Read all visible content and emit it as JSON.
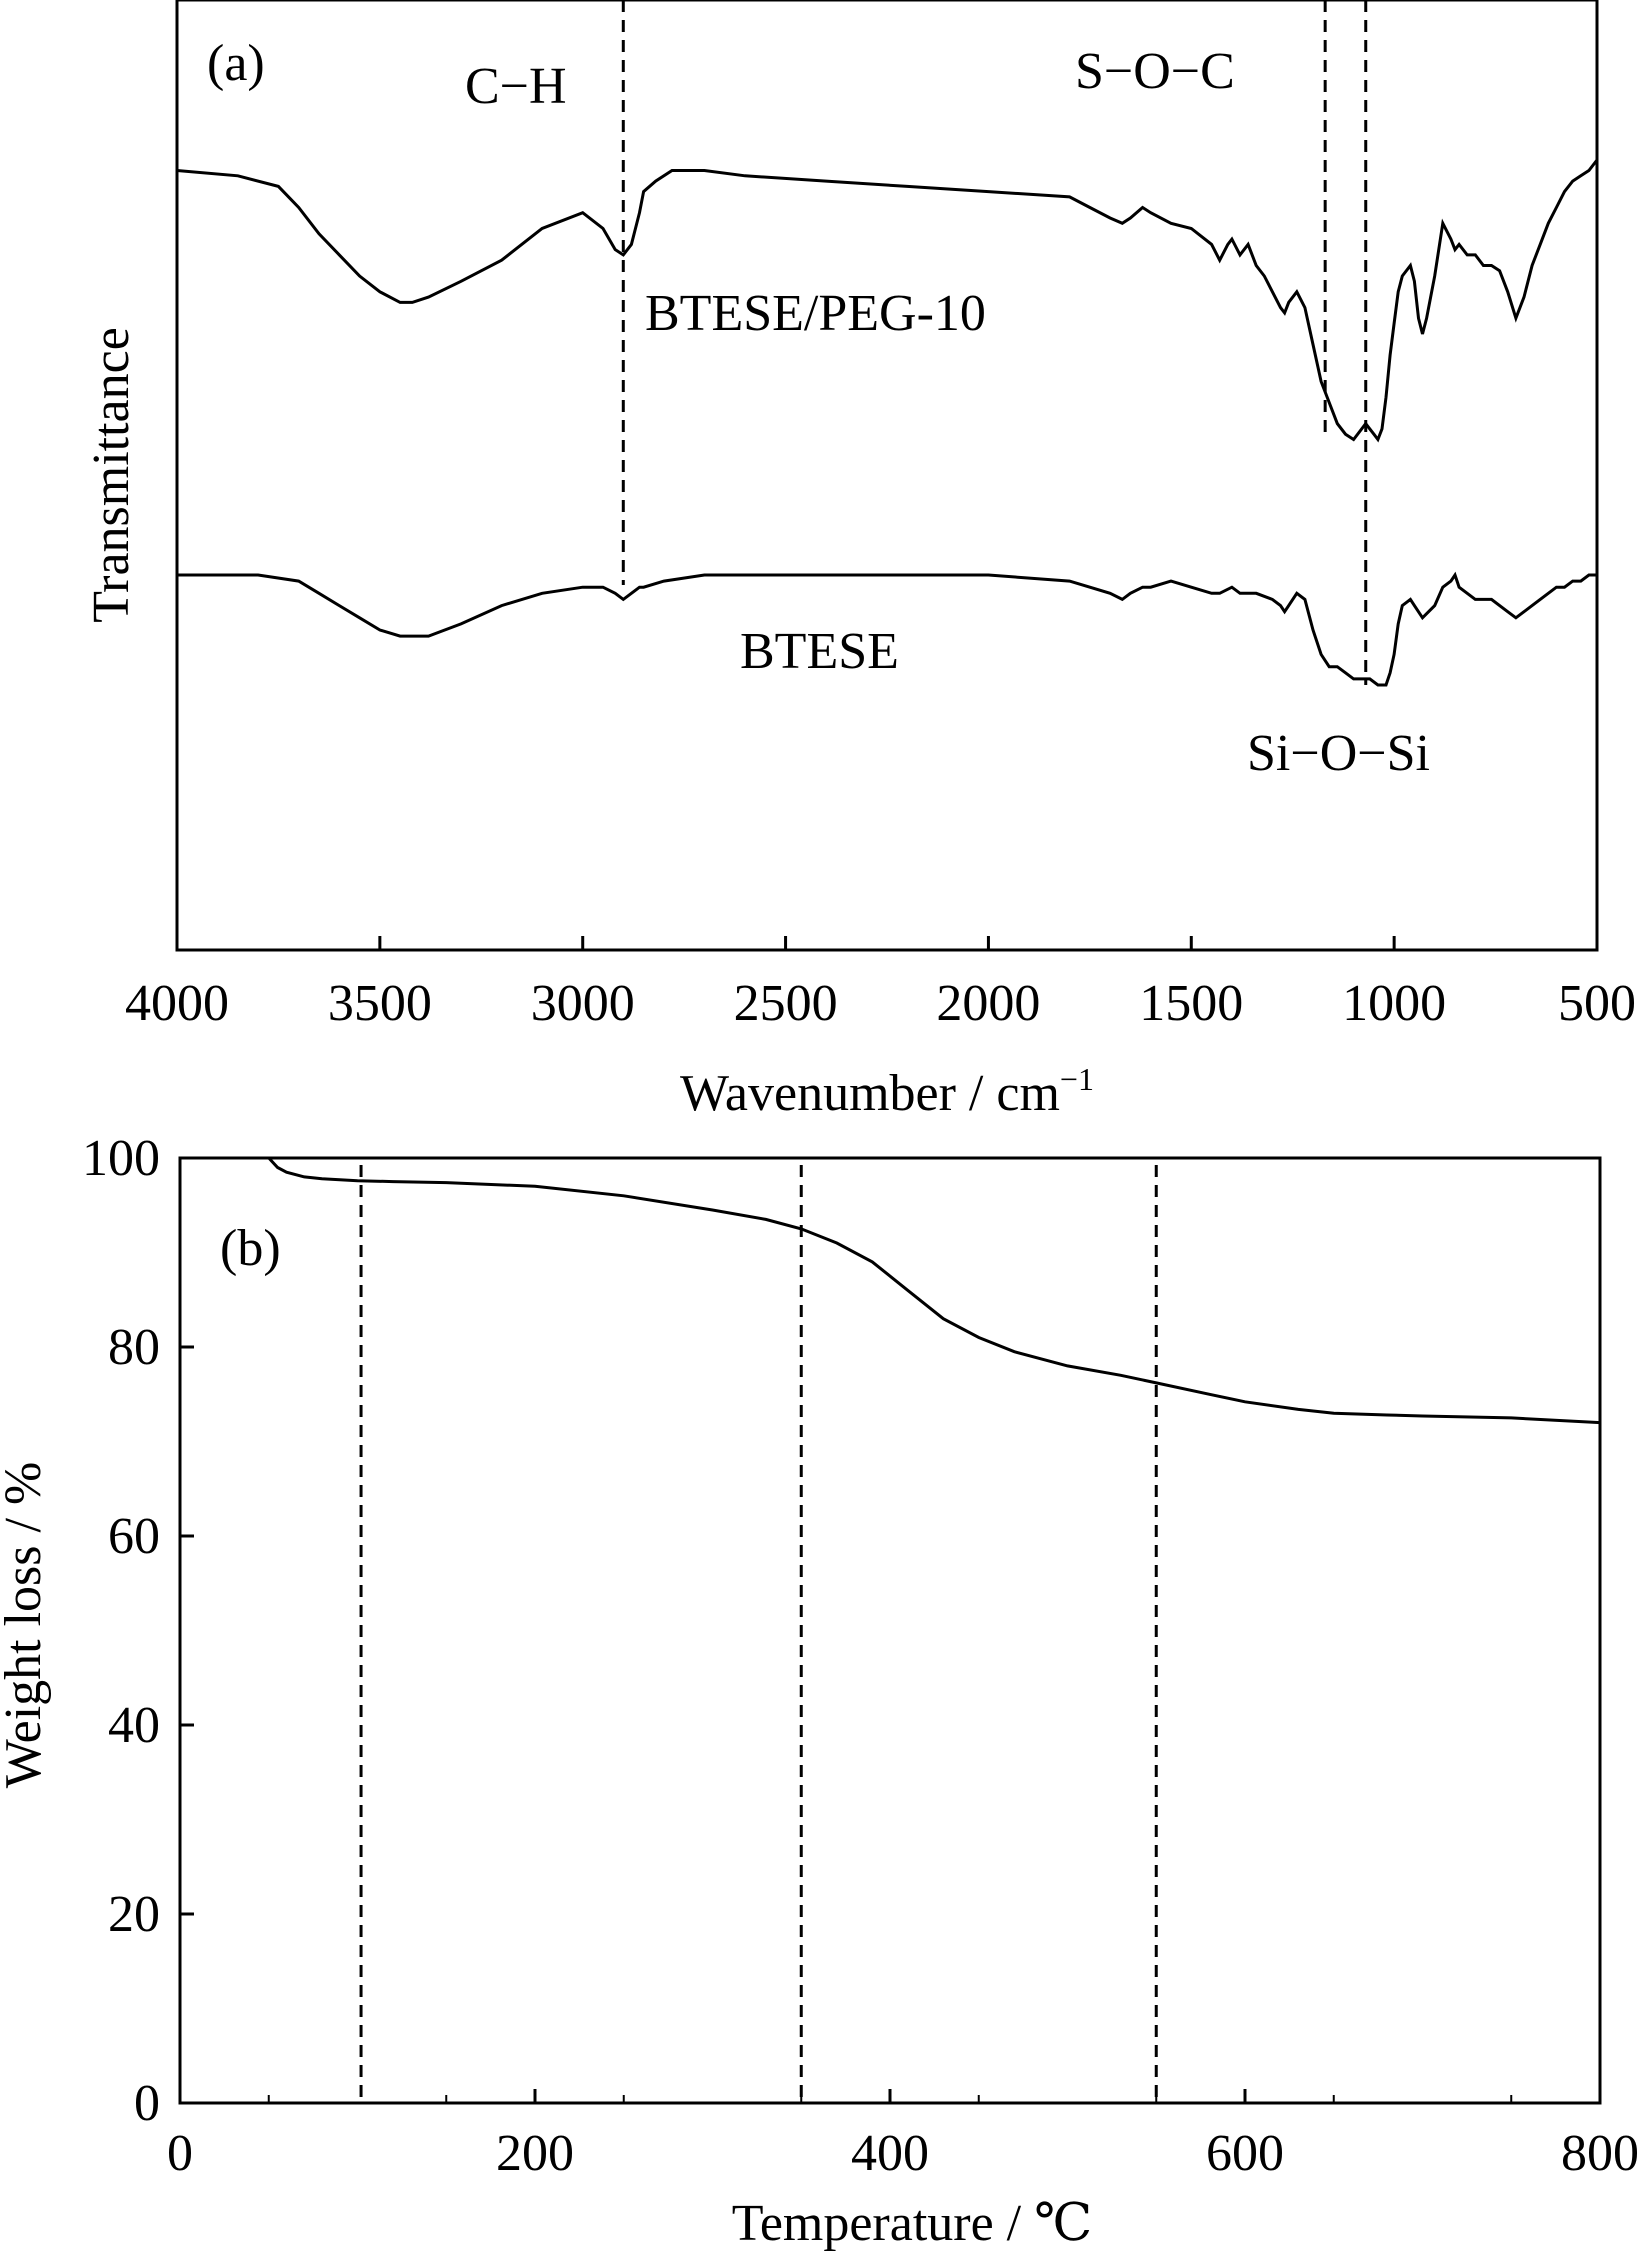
{
  "chart_data": [
    {
      "type": "line",
      "panel_label": "(a)",
      "xlabel": "Wavenumber / cm",
      "xlabel_sup": "−1",
      "ylabel": "Transmittance",
      "xlim": [
        4000,
        500
      ],
      "x_reversed": true,
      "x_ticks": [
        "4000",
        "3500",
        "3000",
        "2500",
        "2000",
        "1500",
        "1000",
        "500"
      ],
      "x_tick_values": [
        4000,
        3500,
        3000,
        2500,
        2000,
        1500,
        1000,
        500
      ],
      "y_ticks": [],
      "grid": false,
      "series": [
        {
          "name": "BTESE/PEG-10",
          "x": [
            4000,
            3850,
            3750,
            3700,
            3650,
            3600,
            3550,
            3500,
            3450,
            3420,
            3380,
            3300,
            3200,
            3100,
            3000,
            2950,
            2920,
            2900,
            2880,
            2860,
            2850,
            2820,
            2780,
            2700,
            2600,
            2400,
            2200,
            2000,
            1800,
            1750,
            1700,
            1670,
            1650,
            1620,
            1600,
            1550,
            1500,
            1450,
            1430,
            1410,
            1400,
            1380,
            1360,
            1340,
            1320,
            1300,
            1280,
            1270,
            1260,
            1240,
            1220,
            1200,
            1180,
            1160,
            1140,
            1120,
            1100,
            1080,
            1070,
            1060,
            1050,
            1040,
            1030,
            1020,
            1010,
            1000,
            990,
            980,
            960,
            950,
            940,
            930,
            920,
            900,
            880,
            860,
            850,
            840,
            820,
            800,
            780,
            760,
            740,
            720,
            700,
            680,
            660,
            640,
            620,
            600,
            580,
            560,
            540,
            520,
            500
          ],
          "y": [
            98,
            97,
            95,
            91,
            86,
            82,
            78,
            75,
            73,
            73,
            74,
            77,
            81,
            87,
            90,
            87,
            83,
            82,
            84,
            90,
            94,
            96,
            98,
            98,
            97,
            96,
            95,
            94,
            93,
            91,
            89,
            88,
            89,
            91,
            90,
            88,
            87,
            84,
            81,
            84,
            85,
            82,
            84,
            80,
            78,
            75,
            72,
            71,
            73,
            75,
            72,
            65,
            58,
            54,
            50,
            48,
            47,
            49,
            50,
            49,
            48,
            47,
            49,
            55,
            63,
            69,
            75,
            78,
            80,
            77,
            70,
            67,
            70,
            78,
            88,
            85,
            83,
            84,
            82,
            82,
            80,
            80,
            79,
            75,
            70,
            74,
            80,
            84,
            88,
            91,
            94,
            96,
            97,
            98,
            100
          ]
        },
        {
          "name": "BTESE",
          "x": [
            4000,
            3800,
            3700,
            3650,
            3600,
            3550,
            3500,
            3450,
            3420,
            3380,
            3300,
            3200,
            3100,
            3000,
            2950,
            2920,
            2900,
            2880,
            2860,
            2850,
            2800,
            2700,
            2400,
            2000,
            1800,
            1750,
            1700,
            1670,
            1650,
            1620,
            1600,
            1550,
            1500,
            1450,
            1430,
            1400,
            1380,
            1340,
            1300,
            1280,
            1270,
            1260,
            1240,
            1220,
            1200,
            1180,
            1160,
            1140,
            1120,
            1100,
            1080,
            1060,
            1040,
            1020,
            1010,
            1000,
            990,
            980,
            960,
            950,
            930,
            900,
            880,
            860,
            850,
            840,
            800,
            760,
            740,
            720,
            700,
            680,
            660,
            640,
            620,
            600,
            580,
            560,
            540,
            520,
            500
          ],
          "y": [
            45,
            45,
            44,
            42,
            40,
            38,
            36,
            35,
            35,
            35,
            37,
            40,
            42,
            43,
            43,
            42,
            41,
            42,
            43,
            43,
            44,
            45,
            45,
            45,
            44,
            43,
            42,
            41,
            42,
            43,
            43,
            44,
            43,
            42,
            42,
            43,
            42,
            42,
            41,
            40,
            39,
            40,
            42,
            41,
            36,
            32,
            30,
            30,
            29,
            28,
            28,
            28,
            27,
            27,
            29,
            32,
            37,
            40,
            41,
            40,
            38,
            40,
            43,
            44,
            45,
            43,
            41,
            41,
            40,
            39,
            38,
            39,
            40,
            41,
            42,
            43,
            43,
            44,
            44,
            45,
            45
          ]
        }
      ],
      "annotations": {
        "ch_label": "C−H",
        "soc_label": "S−O−C",
        "siosi_label": "Si−O−Si",
        "series_label_1": "BTESE/PEG-10",
        "series_label_2": "BTESE"
      },
      "reference_lines_x": [
        2900,
        1170,
        1070
      ]
    },
    {
      "type": "line",
      "panel_label": "(b)",
      "xlabel": "Temperature / ℃",
      "ylabel": "Weight loss / %",
      "xlim": [
        0,
        800
      ],
      "ylim": [
        0,
        100
      ],
      "x_ticks": [
        "0",
        "200",
        "400",
        "600",
        "800"
      ],
      "x_tick_values": [
        0,
        200,
        400,
        600,
        800
      ],
      "y_ticks": [
        "0",
        "20",
        "40",
        "60",
        "80",
        "100"
      ],
      "y_tick_values": [
        0,
        20,
        40,
        60,
        80,
        100
      ],
      "grid": false,
      "series": [
        {
          "x": [
            50,
            55,
            60,
            70,
            80,
            100,
            120,
            150,
            200,
            250,
            300,
            330,
            350,
            370,
            390,
            410,
            430,
            450,
            470,
            500,
            530,
            550,
            580,
            600,
            630,
            650,
            680,
            700,
            750,
            800
          ],
          "y": [
            100,
            99,
            98.5,
            98,
            97.8,
            97.6,
            97.5,
            97.4,
            97,
            96,
            94.5,
            93.5,
            92.5,
            91,
            89,
            86,
            83,
            81,
            79.5,
            78,
            77,
            76.2,
            75,
            74.2,
            73.4,
            73,
            72.8,
            72.7,
            72.5,
            72
          ]
        }
      ],
      "reference_lines_x": [
        102,
        350,
        550
      ]
    }
  ]
}
